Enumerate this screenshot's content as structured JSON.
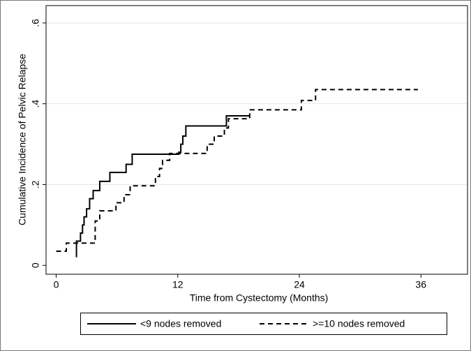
{
  "chart_data": {
    "type": "step",
    "xlabel": "Time from Cystectomy (Months)",
    "ylabel": "Cumulative Incidence of Pelvic Relapse",
    "xlim": [
      -1,
      40.6
    ],
    "xticks": [
      0,
      12,
      24,
      36
    ],
    "ylim": [
      -0.022,
      0.643
    ],
    "yticks": [
      0,
      {
        "value": 0.2,
        "label": ".2"
      },
      {
        "value": 0.4,
        "label": ".4"
      },
      {
        "value": 0.6,
        "label": ".6"
      }
    ],
    "grid": true,
    "legend": "bottom",
    "series": [
      {
        "name": "<9 nodes removed",
        "color": "#000000",
        "dash": "solid",
        "x": [
          2.0,
          2.0,
          2.4,
          2.6,
          2.75,
          3.0,
          3.3,
          3.65,
          4.3,
          5.3,
          6.9,
          7.5,
          12.1,
          12.3,
          12.5,
          12.8,
          16.8,
          19.1
        ],
        "values": [
          0.02,
          0.06,
          0.08,
          0.1,
          0.12,
          0.14,
          0.165,
          0.185,
          0.208,
          0.23,
          0.25,
          0.275,
          0.28,
          0.3,
          0.32,
          0.345,
          0.37,
          0.37
        ]
      },
      {
        "name": ">=10 nodes removed",
        "color": "#000000",
        "dash": "dashed",
        "x": [
          0,
          1.0,
          3.85,
          4.3,
          5.9,
          6.7,
          7.3,
          9.8,
          10.2,
          10.5,
          11.2,
          14.9,
          15.6,
          16.6,
          17.0,
          19.1,
          24.2,
          25.6,
          35.7
        ],
        "values": [
          0.035,
          0.055,
          0.11,
          0.135,
          0.155,
          0.175,
          0.197,
          0.22,
          0.24,
          0.26,
          0.277,
          0.3,
          0.32,
          0.34,
          0.363,
          0.385,
          0.408,
          0.435,
          0.435
        ]
      }
    ]
  }
}
